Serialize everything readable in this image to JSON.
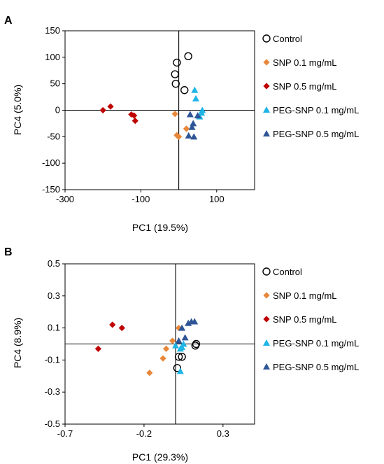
{
  "colors": {
    "control": "#000000",
    "snp01": "#E8873A",
    "snp05": "#C00000",
    "peg01": "#1EB4E6",
    "peg05": "#2E5596"
  },
  "chart_data": [
    {
      "panel": "A",
      "type": "scatter",
      "xlabel": "PC1 (19.5%)",
      "ylabel": "PC4 (5.0%)",
      "xlim": [
        -300,
        200
      ],
      "ylim": [
        -150,
        150
      ],
      "xticks": [
        -300,
        -100,
        100
      ],
      "yticks": [
        150,
        100,
        50,
        0,
        -50,
        -100,
        -150
      ],
      "legend_position": "right",
      "series": [
        {
          "name": "Control",
          "marker": "circle-open",
          "color": "#000000",
          "points": [
            [
              -5,
              90
            ],
            [
              25,
              102
            ],
            [
              -10,
              68
            ],
            [
              -8,
              50
            ],
            [
              15,
              38
            ]
          ]
        },
        {
          "name": "SNP 0.1 mg/mL",
          "marker": "diamond",
          "color": "#E8873A",
          "points": [
            [
              -10,
              -7
            ],
            [
              -5,
              -47
            ],
            [
              0,
              -50
            ],
            [
              20,
              -35
            ],
            [
              -4,
              -48
            ]
          ]
        },
        {
          "name": "SNP 0.5 mg/mL",
          "marker": "diamond",
          "color": "#C00000",
          "points": [
            [
              -200,
              0
            ],
            [
              -180,
              7
            ],
            [
              -125,
              -8
            ],
            [
              -118,
              -10
            ],
            [
              -115,
              -20
            ]
          ]
        },
        {
          "name": "PEG-SNP 0.1 mg/mL",
          "marker": "triangle",
          "color": "#1EB4E6",
          "points": [
            [
              42,
              38
            ],
            [
              45,
              22
            ],
            [
              60,
              -5
            ],
            [
              62,
              0
            ],
            [
              55,
              -12
            ]
          ]
        },
        {
          "name": "PEG-SNP 0.5 mg/mL",
          "marker": "triangle",
          "color": "#2E5596",
          "points": [
            [
              30,
              -8
            ],
            [
              35,
              -32
            ],
            [
              38,
              -25
            ],
            [
              40,
              -50
            ],
            [
              50,
              -10
            ],
            [
              26,
              -48
            ]
          ]
        }
      ]
    },
    {
      "panel": "B",
      "type": "scatter",
      "xlabel": "PC1 (29.3%)",
      "ylabel": "PC4 (8.9%)",
      "xlim": [
        -0.7,
        0.5
      ],
      "ylim": [
        -0.5,
        0.5
      ],
      "xticks": [
        -0.7,
        -0.2,
        0.3
      ],
      "yticks": [
        0.5,
        0.3,
        0.1,
        -0.1,
        -0.3,
        -0.5
      ],
      "xtick_labels": [
        "-0.7",
        "-0.2",
        "0.3"
      ],
      "ytick_labels": [
        "0.5",
        "0.3",
        "0.1",
        "-0.1",
        "-0.3",
        "-0.5"
      ],
      "legend_position": "right",
      "series": [
        {
          "name": "Control",
          "marker": "circle-open",
          "color": "#000000",
          "points": [
            [
              0.02,
              -0.08
            ],
            [
              0.04,
              -0.08
            ],
            [
              0.01,
              -0.15
            ],
            [
              0.13,
              0.0
            ],
            [
              0.125,
              -0.01
            ]
          ]
        },
        {
          "name": "SNP 0.1 mg/mL",
          "marker": "diamond",
          "color": "#E8873A",
          "points": [
            [
              -0.165,
              -0.18
            ],
            [
              -0.08,
              -0.09
            ],
            [
              -0.06,
              -0.03
            ],
            [
              -0.02,
              0.02
            ],
            [
              0.02,
              0.1
            ]
          ]
        },
        {
          "name": "SNP 0.5 mg/mL",
          "marker": "diamond",
          "color": "#C00000",
          "points": [
            [
              -0.49,
              -0.03
            ],
            [
              -0.4,
              0.12
            ],
            [
              -0.34,
              0.1
            ]
          ]
        },
        {
          "name": "PEG-SNP 0.1 mg/mL",
          "marker": "triangle",
          "color": "#1EB4E6",
          "points": [
            [
              0.0,
              -0.01
            ],
            [
              0.03,
              -0.03
            ],
            [
              0.04,
              -0.02
            ],
            [
              0.03,
              -0.17
            ],
            [
              0.05,
              0.0
            ]
          ]
        },
        {
          "name": "PEG-SNP 0.5 mg/mL",
          "marker": "triangle",
          "color": "#2E5596",
          "points": [
            [
              0.04,
              0.1
            ],
            [
              0.08,
              0.13
            ],
            [
              0.1,
              0.14
            ],
            [
              0.12,
              0.14
            ],
            [
              0.06,
              0.04
            ],
            [
              0.02,
              0.02
            ]
          ]
        }
      ]
    }
  ]
}
